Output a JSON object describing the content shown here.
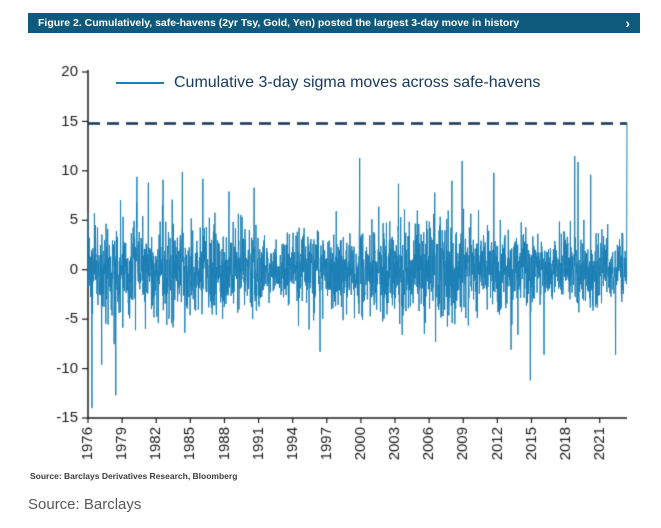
{
  "header": {
    "title": "Figure 2. Cumulatively, safe-havens (2yr Tsy, Gold, Yen) posted the largest 3-day move in history",
    "chevron": "›",
    "bg_color": "#0e5a7d"
  },
  "chart_data": {
    "type": "line",
    "title": "",
    "legend_label": "Cumulative 3-day sigma moves across safe-havens",
    "legend_position": "top",
    "grid": false,
    "ylabel": "",
    "xlabel": "",
    "ylim": [
      -15,
      20
    ],
    "y_ticks": [
      20,
      15,
      10,
      5,
      0,
      -5,
      -10,
      -15
    ],
    "x_range": [
      1976,
      2023.4
    ],
    "x_ticks": [
      "1976",
      "1979",
      "1982",
      "1985",
      "1988",
      "1991",
      "1994",
      "1997",
      "2000",
      "2003",
      "2006",
      "2009",
      "2012",
      "2015",
      "2018",
      "2021"
    ],
    "line_color": "#1b7fb5",
    "dashed_reference": {
      "value": 14.8,
      "color": "#14334f",
      "meaning": "record largest 3-day move, reached at end of series"
    },
    "noise": {
      "seed": 7,
      "points": 2600,
      "sigma": 2.05,
      "description": "dense daily oscillation around 0, typical envelope roughly -5 to +7 sigma"
    },
    "spikes": [
      {
        "year": 1976.35,
        "value": -14.0
      },
      {
        "year": 1977.2,
        "value": -9.6
      },
      {
        "year": 1978.45,
        "value": -12.7
      },
      {
        "year": 1980.3,
        "value": 9.4
      },
      {
        "year": 1981.3,
        "value": 8.8
      },
      {
        "year": 1982.6,
        "value": 9.1
      },
      {
        "year": 1984.3,
        "value": 9.9
      },
      {
        "year": 1986.1,
        "value": 9.2
      },
      {
        "year": 1988.4,
        "value": 7.9
      },
      {
        "year": 1990.6,
        "value": 8.3
      },
      {
        "year": 1996.4,
        "value": -8.3
      },
      {
        "year": 1999.9,
        "value": 11.3
      },
      {
        "year": 2003.3,
        "value": 8.7
      },
      {
        "year": 2006.5,
        "value": 7.8
      },
      {
        "year": 2008.0,
        "value": 9.0
      },
      {
        "year": 2008.9,
        "value": 11.0
      },
      {
        "year": 2011.7,
        "value": 9.8
      },
      {
        "year": 2013.2,
        "value": -8.1
      },
      {
        "year": 2014.9,
        "value": -11.2
      },
      {
        "year": 2016.1,
        "value": -8.6
      },
      {
        "year": 2018.8,
        "value": 11.5
      },
      {
        "year": 2019.1,
        "value": 10.9
      },
      {
        "year": 2020.2,
        "value": 9.6
      },
      {
        "year": 2022.4,
        "value": -8.6
      },
      {
        "year": 2023.4,
        "value": 14.8
      }
    ],
    "source_note": "Source: Barclays Derivatives Research, Bloomberg"
  },
  "footer": {
    "source": "Source: Barclays"
  }
}
